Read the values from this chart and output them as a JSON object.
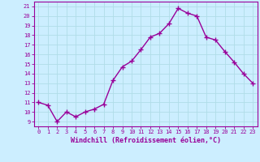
{
  "x": [
    0,
    1,
    2,
    3,
    4,
    5,
    6,
    7,
    8,
    9,
    10,
    11,
    12,
    13,
    14,
    15,
    16,
    17,
    18,
    19,
    20,
    21,
    22,
    23
  ],
  "y": [
    11.0,
    10.7,
    9.0,
    10.0,
    9.5,
    10.0,
    10.3,
    10.8,
    13.3,
    14.7,
    15.3,
    16.5,
    17.8,
    18.2,
    19.2,
    20.8,
    20.3,
    20.0,
    17.8,
    17.5,
    16.3,
    15.2,
    14.0,
    13.0
  ],
  "line_color": "#990099",
  "marker": "+",
  "bg_color": "#cceeff",
  "xlabel": "Windchill (Refroidissement éolien,°C)",
  "xlabel_color": "#990099",
  "xlim": [
    -0.5,
    23.5
  ],
  "ylim": [
    8.5,
    21.5
  ],
  "yticks": [
    9,
    10,
    11,
    12,
    13,
    14,
    15,
    16,
    17,
    18,
    19,
    20,
    21
  ],
  "xticks": [
    0,
    1,
    2,
    3,
    4,
    5,
    6,
    7,
    8,
    9,
    10,
    11,
    12,
    13,
    14,
    15,
    16,
    17,
    18,
    19,
    20,
    21,
    22,
    23
  ],
  "grid_color": "#b0dde8",
  "tick_color": "#990099",
  "tick_label_color": "#990099",
  "axis_color": "#990099",
  "linewidth": 1.0,
  "markersize": 4,
  "markeredgewidth": 1.0,
  "tick_fontsize": 5.0,
  "xlabel_fontsize": 6.0
}
